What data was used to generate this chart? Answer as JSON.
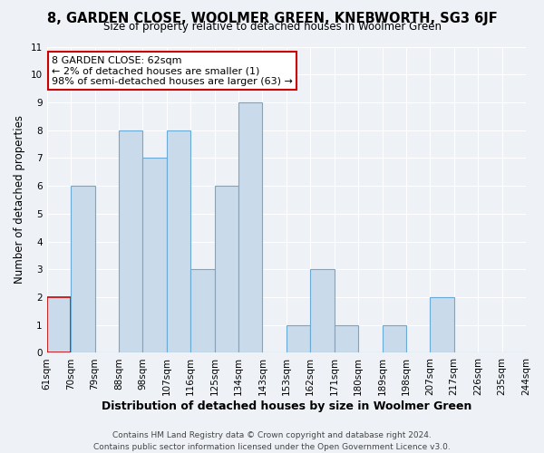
{
  "title": "8, GARDEN CLOSE, WOOLMER GREEN, KNEBWORTH, SG3 6JF",
  "subtitle": "Size of property relative to detached houses in Woolmer Green",
  "xlabel": "Distribution of detached houses by size in Woolmer Green",
  "ylabel": "Number of detached properties",
  "bin_labels": [
    "61sqm",
    "70sqm",
    "79sqm",
    "88sqm",
    "98sqm",
    "107sqm",
    "116sqm",
    "125sqm",
    "134sqm",
    "143sqm",
    "153sqm",
    "162sqm",
    "171sqm",
    "180sqm",
    "189sqm",
    "198sqm",
    "207sqm",
    "217sqm",
    "226sqm",
    "235sqm",
    "244sqm"
  ],
  "counts": [
    2,
    6,
    0,
    8,
    7,
    8,
    3,
    6,
    9,
    0,
    1,
    3,
    1,
    0,
    1,
    0,
    2,
    0,
    0,
    0
  ],
  "bar_color": "#c9daea",
  "bar_edge_color": "#6aaad4",
  "highlight_bin_index": 0,
  "highlight_edge_color": "#cc0000",
  "annotation_text": "8 GARDEN CLOSE: 62sqm\n← 2% of detached houses are smaller (1)\n98% of semi-detached houses are larger (63) →",
  "annotation_box_edge_color": "#cc0000",
  "annotation_box_face_color": "white",
  "ylim": [
    0,
    11
  ],
  "yticks": [
    0,
    1,
    2,
    3,
    4,
    5,
    6,
    7,
    8,
    9,
    10,
    11
  ],
  "footer_text": "Contains HM Land Registry data © Crown copyright and database right 2024.\nContains public sector information licensed under the Open Government Licence v3.0.",
  "background_color": "#eef2f7",
  "grid_color": "#ffffff",
  "title_fontsize": 10.5,
  "subtitle_fontsize": 8.5,
  "xlabel_fontsize": 9,
  "ylabel_fontsize": 8.5,
  "tick_fontsize": 7.5,
  "footer_fontsize": 6.5,
  "annotation_fontsize": 8
}
